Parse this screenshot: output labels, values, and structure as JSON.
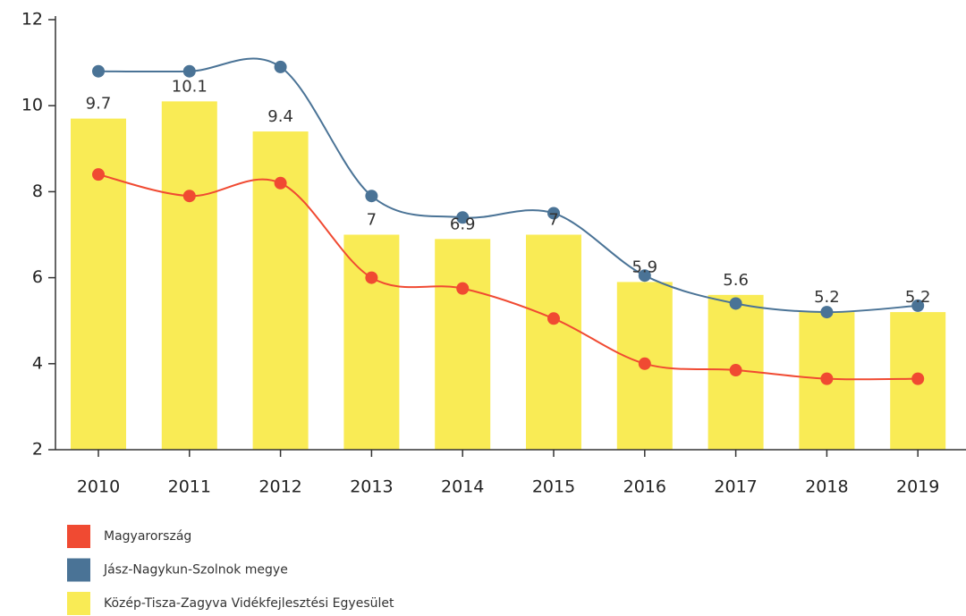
{
  "chart_data": {
    "type": "bar",
    "categories": [
      "2010",
      "2011",
      "2012",
      "2013",
      "2014",
      "2015",
      "2016",
      "2017",
      "2018",
      "2019"
    ],
    "series": [
      {
        "name": "Magyarország",
        "type": "line",
        "color": "#f04a32",
        "values": [
          8.4,
          7.9,
          8.2,
          6.0,
          5.75,
          5.05,
          4.0,
          3.85,
          3.65,
          3.65
        ]
      },
      {
        "name": "Jász-Nagykun-Szolnok megye",
        "type": "line",
        "color": "#4a7396",
        "values": [
          10.8,
          10.8,
          10.9,
          7.9,
          7.4,
          7.5,
          6.05,
          5.4,
          5.2,
          5.35
        ]
      },
      {
        "name": "Közép-Tisza-Zagyva Vidékfejlesztési Egyesület",
        "type": "bar",
        "color": "#f9eb55",
        "values": [
          9.7,
          10.1,
          9.4,
          7,
          6.9,
          7,
          5.9,
          5.6,
          5.2,
          5.2
        ]
      }
    ],
    "ylim": [
      2,
      12
    ],
    "yticks": [
      2,
      4,
      6,
      8,
      10,
      12
    ],
    "grid": false,
    "legend": "bottom"
  }
}
